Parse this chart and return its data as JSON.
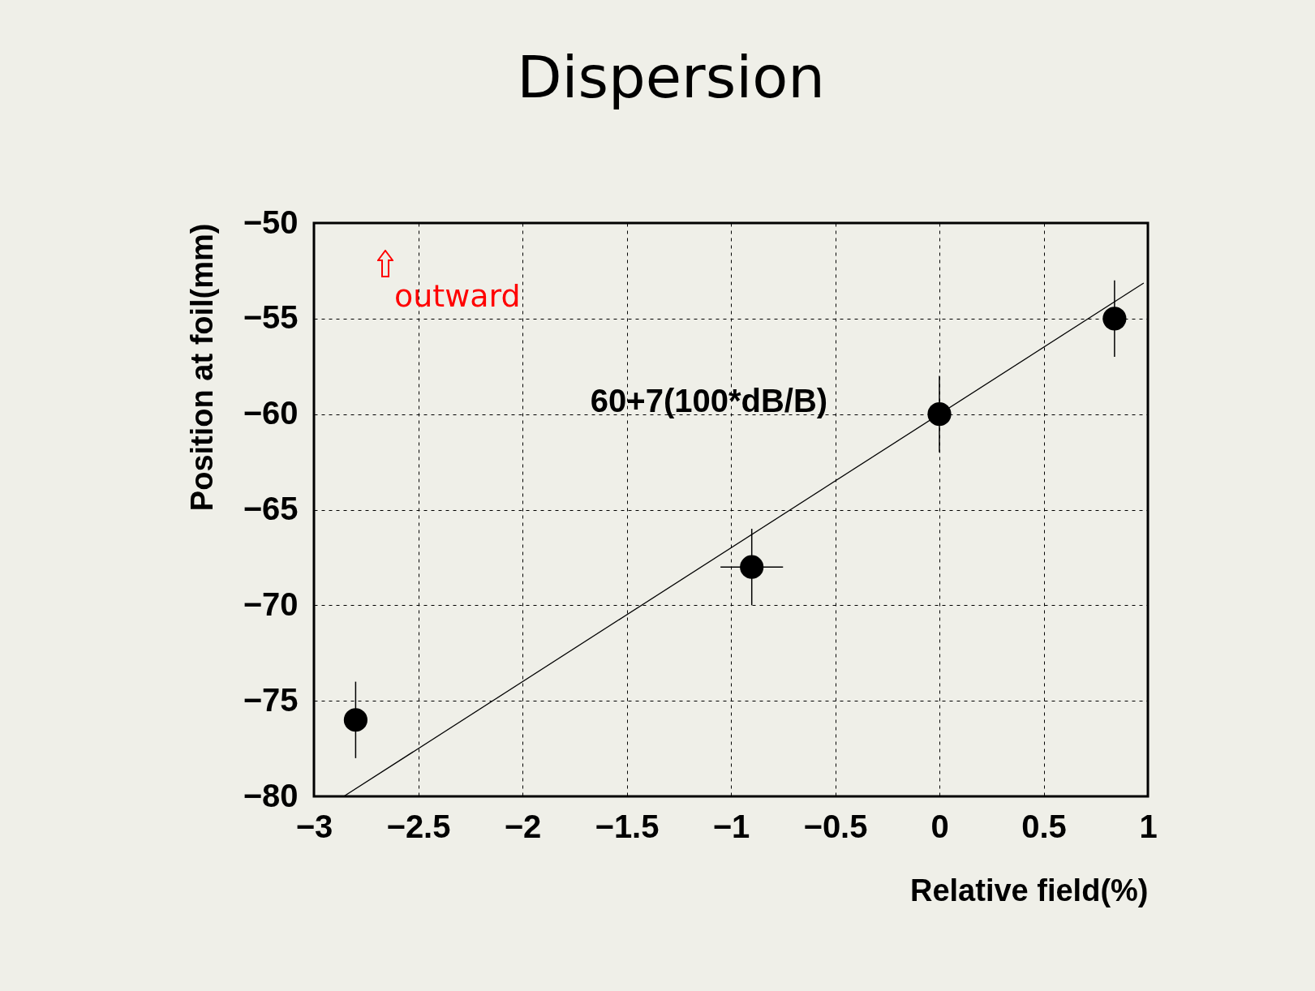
{
  "chart_data": {
    "type": "scatter",
    "title": "Dispersion",
    "xlabel": "Relative field(%)",
    "ylabel": "Position at foil(mm)",
    "x": [
      -2.8,
      -0.9,
      0,
      0.84
    ],
    "series": [
      {
        "color": "#000000",
        "marker": "circle",
        "values": [
          -76,
          -68,
          -60,
          -55
        ],
        "errors": [
          2,
          2,
          2,
          2
        ],
        "xerrors": [
          null,
          0.15,
          null,
          null
        ]
      },
      {
        "type": "line",
        "color": "#000000",
        "x": [
          -2.857,
          0.98
        ],
        "values": [
          -80,
          -53.14
        ]
      }
    ],
    "xlim": [
      -3,
      1
    ],
    "xticks": [
      -3,
      -2.5,
      -2,
      -1.5,
      -1,
      -0.5,
      0,
      0.5,
      1
    ],
    "ylim": [
      -80,
      -50
    ],
    "yticks": [
      -80,
      -75,
      -70,
      -65,
      -60,
      -55,
      -50
    ],
    "grid": true,
    "annotations": [
      "60+7(100*dB/B)",
      "outward"
    ]
  }
}
